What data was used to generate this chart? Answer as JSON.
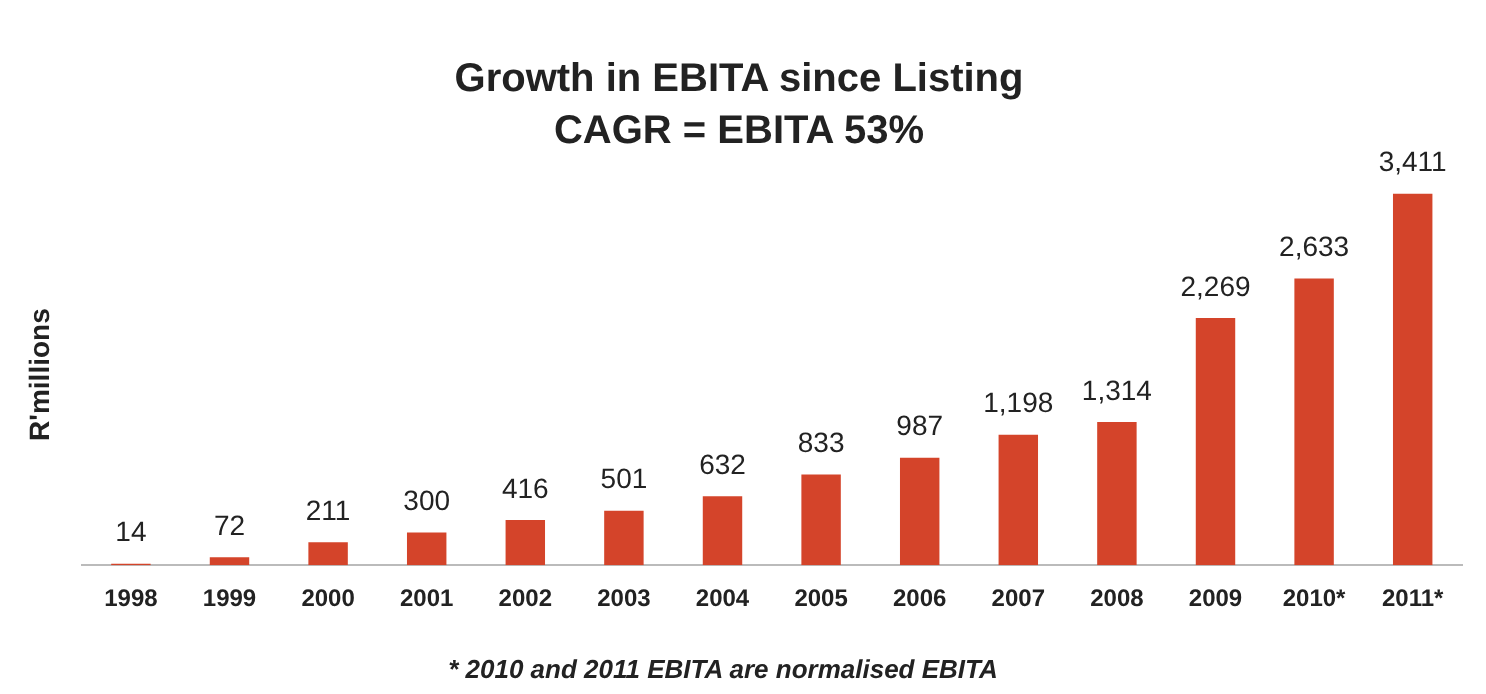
{
  "chart_data": {
    "type": "bar",
    "title": "Growth in EBITA since Listing",
    "subtitle": "CAGR = EBITA 53%",
    "ylabel": "R'millions",
    "categories": [
      "1998",
      "1999",
      "2000",
      "2001",
      "2002",
      "2003",
      "2004",
      "2005",
      "2006",
      "2007",
      "2008",
      "2009",
      "2010*",
      "2011*"
    ],
    "values": [
      14,
      72,
      211,
      300,
      416,
      501,
      632,
      833,
      987,
      1198,
      1314,
      2269,
      2633,
      3411
    ],
    "value_labels": [
      "14",
      "72",
      "211",
      "300",
      "416",
      "501",
      "632",
      "833",
      "987",
      "1,198",
      "1,314",
      "2,269",
      "2,633",
      "3,411"
    ],
    "color": "#d4442a",
    "tick_labels": "x",
    "grid": false,
    "legend": false,
    "annotations": [
      "* 2010 and 2011 EBITA are normalised EBITA"
    ]
  }
}
